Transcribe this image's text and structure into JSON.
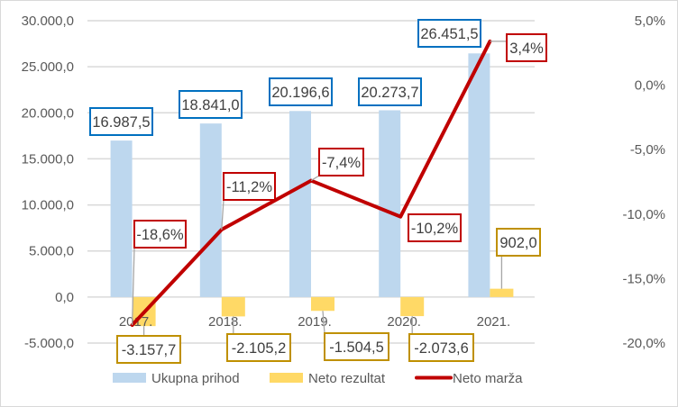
{
  "chart_data": {
    "type": "bar+line",
    "categories": [
      "2017.",
      "2018.",
      "2019.",
      "2020.",
      "2021."
    ],
    "series": [
      {
        "name": "Ukupna prihod",
        "type": "bar",
        "axis": "left",
        "color": "#BDD7EE",
        "values": [
          16987.5,
          18841.0,
          20196.6,
          20273.7,
          26451.5
        ],
        "labels": [
          "16.987,5",
          "18.841,0",
          "20.196,6",
          "20.273,7",
          "26.451,5"
        ],
        "label_border": "#0070C0"
      },
      {
        "name": "Neto rezultat",
        "type": "bar",
        "axis": "left",
        "color": "#FFD966",
        "values": [
          -3157.7,
          -2105.2,
          -1504.5,
          -2073.6,
          902.0
        ],
        "labels": [
          "-3.157,7",
          "-2.105,2",
          "-1.504,5",
          "-2.073,6",
          "902,0"
        ],
        "label_border": "#BF9000"
      },
      {
        "name": "Neto marža",
        "type": "line",
        "axis": "right",
        "color": "#C00000",
        "values": [
          -18.6,
          -11.2,
          -7.4,
          -10.2,
          3.4
        ],
        "labels": [
          "-18,6%",
          "-11,2%",
          "-7,4%",
          "-10,2%",
          "3,4%"
        ],
        "label_border": "#C00000"
      }
    ],
    "left_axis": {
      "ylim": [
        -5000,
        30000
      ],
      "ticks": [
        30000,
        25000,
        20000,
        15000,
        10000,
        5000,
        0,
        -5000
      ],
      "tick_labels": [
        "30.000,0",
        "25.000,0",
        "20.000,0",
        "15.000,0",
        "10.000,0",
        "5.000,0",
        "0,0",
        "-5.000,0"
      ]
    },
    "right_axis": {
      "ylim": [
        -20,
        5
      ],
      "ticks": [
        5,
        0,
        -5,
        -10,
        -15,
        -20
      ],
      "tick_labels": [
        "5,0%",
        "0,0%",
        "-5,0%",
        "-10,0%",
        "-15,0%",
        "-20,0%"
      ]
    },
    "grid": true,
    "legend": "bottom",
    "title": "",
    "xlabel": "",
    "ylabel": ""
  }
}
